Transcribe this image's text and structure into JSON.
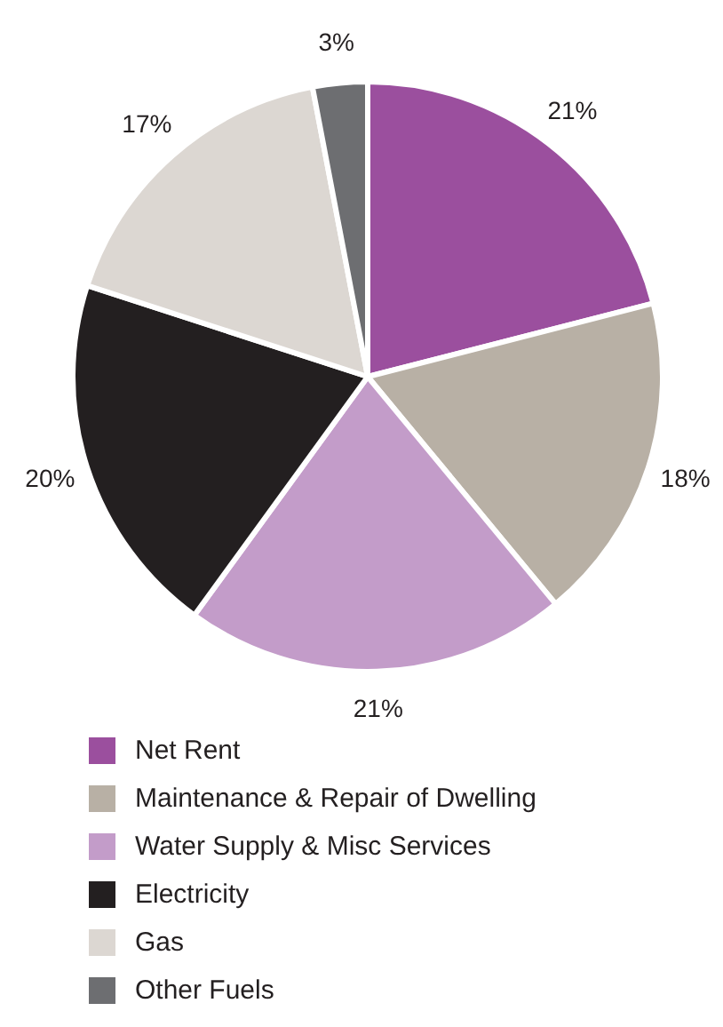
{
  "chart_data": {
    "type": "pie",
    "categories": [
      "Net Rent",
      "Maintenance & Repair of Dwelling",
      "Water Supply & Misc Services",
      "Electricity",
      "Gas",
      "Other Fuels"
    ],
    "values": [
      21,
      18,
      21,
      20,
      17,
      3
    ],
    "colors": [
      "#9b4f9e",
      "#b8b0a5",
      "#c39cc9",
      "#231f20",
      "#dcd7d2",
      "#6d6e71"
    ],
    "value_labels": [
      "21%",
      "18%",
      "21%",
      "20%",
      "17%",
      "3%"
    ],
    "legend": "bottom"
  }
}
